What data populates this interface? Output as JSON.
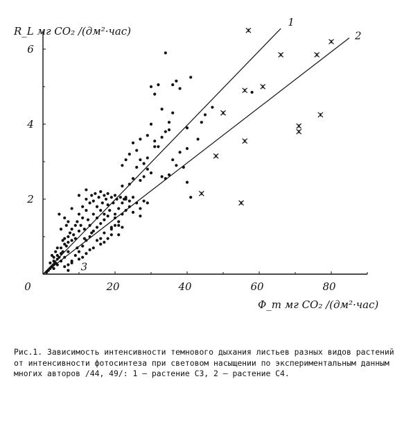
{
  "chart_data": {
    "type": "scatter",
    "ylabel": "R_L  мг CO₂ /(дм²·час)",
    "xlabel": "Φ_m  мг CO₂ /(дм²·час)",
    "xlim": [
      0,
      90
    ],
    "ylim": [
      0,
      6.2
    ],
    "x_ticks": [
      "0",
      "20",
      "40",
      "60",
      "80"
    ],
    "x_tick_values": [
      0,
      20,
      40,
      60,
      80
    ],
    "y_ticks": [
      "2",
      "4",
      "6"
    ],
    "y_tick_values": [
      2,
      4,
      6
    ],
    "grid": false,
    "series": [
      {
        "marker": "dot",
        "points": [
          [
            1,
            0.05
          ],
          [
            1.5,
            0.1
          ],
          [
            2,
            0.15
          ],
          [
            2.5,
            0.2
          ],
          [
            3,
            0.25
          ],
          [
            3,
            0.35
          ],
          [
            3.5,
            0.3
          ],
          [
            4,
            0.4
          ],
          [
            4,
            0.5
          ],
          [
            4.5,
            0.45
          ],
          [
            5,
            0.55
          ],
          [
            5,
            0.7
          ],
          [
            5.5,
            0.6
          ],
          [
            6,
            0.8
          ],
          [
            6,
            0.95
          ],
          [
            6.5,
            0.75
          ],
          [
            7,
            1.0
          ],
          [
            7,
            0.85
          ],
          [
            7.5,
            1.1
          ],
          [
            8,
            0.9
          ],
          [
            8,
            1.2
          ],
          [
            8.5,
            1.05
          ],
          [
            9,
            1.3
          ],
          [
            9,
            0.95
          ],
          [
            9.5,
            1.4
          ],
          [
            10,
            1.15
          ],
          [
            10,
            1.6
          ],
          [
            10.5,
            1.3
          ],
          [
            11,
            1.5
          ],
          [
            11,
            1.8
          ],
          [
            11.5,
            1.2
          ],
          [
            12,
            1.7
          ],
          [
            12,
            2.0
          ],
          [
            12.5,
            1.45
          ],
          [
            13,
            1.9
          ],
          [
            13,
            1.3
          ],
          [
            13.5,
            2.1
          ],
          [
            14,
            1.6
          ],
          [
            14,
            1.95
          ],
          [
            14.5,
            2.15
          ],
          [
            15,
            1.8
          ],
          [
            15,
            1.5
          ],
          [
            15.5,
            2.05
          ],
          [
            16,
            1.7
          ],
          [
            16,
            2.2
          ],
          [
            16.5,
            1.9
          ],
          [
            17,
            2.1
          ],
          [
            17,
            1.6
          ],
          [
            17.5,
            2.0
          ],
          [
            18,
            1.85
          ],
          [
            18,
            2.15
          ],
          [
            18.5,
            1.7
          ],
          [
            19,
            2.05
          ],
          [
            19.5,
            1.9
          ],
          [
            20,
            2.1
          ],
          [
            20,
            1.6
          ],
          [
            20.5,
            2.0
          ],
          [
            21,
            1.75
          ],
          [
            21.5,
            2.05
          ],
          [
            22,
            1.9
          ],
          [
            22.5,
            2.0
          ],
          [
            23,
            2.05
          ],
          [
            8,
            0.35
          ],
          [
            9,
            0.5
          ],
          [
            10,
            0.6
          ],
          [
            11,
            0.75
          ],
          [
            12,
            0.9
          ],
          [
            13,
            1.0
          ],
          [
            14,
            1.15
          ],
          [
            15,
            1.25
          ],
          [
            16,
            1.35
          ],
          [
            17,
            1.45
          ],
          [
            18,
            1.55
          ],
          [
            19,
            1.25
          ],
          [
            20,
            1.5
          ],
          [
            21,
            1.4
          ],
          [
            22,
            1.6
          ],
          [
            23,
            1.7
          ],
          [
            24,
            1.8
          ],
          [
            25,
            1.65
          ],
          [
            26,
            1.9
          ],
          [
            27,
            1.75
          ],
          [
            28,
            1.95
          ],
          [
            7,
            0.6
          ],
          [
            6,
            0.45
          ],
          [
            5,
            0.35
          ],
          [
            4,
            0.25
          ],
          [
            3,
            0.15
          ],
          [
            9.5,
            0.7
          ],
          [
            11.5,
            0.95
          ],
          [
            13.5,
            1.1
          ],
          [
            5.5,
            0.9
          ],
          [
            6.5,
            1.3
          ],
          [
            4.5,
            1.6
          ],
          [
            6,
            1.5
          ],
          [
            8,
            1.75
          ],
          [
            10,
            2.1
          ],
          [
            12,
            2.25
          ],
          [
            7,
            1.4
          ],
          [
            3.5,
            0.6
          ],
          [
            2,
            0.3
          ],
          [
            16,
            0.95
          ],
          [
            15,
            0.9
          ],
          [
            17,
            1.1
          ],
          [
            19,
            1.2
          ],
          [
            20,
            1.3
          ],
          [
            21,
            1.3
          ],
          [
            22,
            2.35
          ],
          [
            24,
            2.4
          ],
          [
            25,
            2.55
          ],
          [
            22,
            2.9
          ],
          [
            23,
            3.05
          ],
          [
            24,
            3.2
          ],
          [
            26,
            2.85
          ],
          [
            27,
            3.05
          ],
          [
            28,
            2.95
          ],
          [
            29,
            3.1
          ],
          [
            30,
            2.7
          ],
          [
            28,
            2.6
          ],
          [
            26,
            3.3
          ],
          [
            25,
            3.5
          ],
          [
            27,
            3.6
          ],
          [
            29,
            3.7
          ],
          [
            31,
            3.55
          ],
          [
            32,
            3.4
          ],
          [
            33,
            3.65
          ],
          [
            35,
            3.85
          ],
          [
            34,
            3.8
          ],
          [
            33,
            4.4
          ],
          [
            30,
            4.0
          ],
          [
            31,
            4.8
          ],
          [
            30,
            5.0
          ],
          [
            32,
            5.05
          ],
          [
            36,
            5.05
          ],
          [
            37,
            5.15
          ],
          [
            38,
            4.95
          ],
          [
            41,
            5.25
          ],
          [
            34,
            5.9
          ],
          [
            35,
            4.05
          ],
          [
            36,
            4.3
          ],
          [
            37,
            2.9
          ],
          [
            38,
            3.25
          ],
          [
            36,
            3.05
          ],
          [
            34,
            2.55
          ],
          [
            33,
            2.6
          ],
          [
            31,
            3.4
          ],
          [
            29,
            2.8
          ],
          [
            27,
            2.5
          ],
          [
            35,
            2.65
          ],
          [
            40,
            3.35
          ],
          [
            39,
            2.85
          ],
          [
            40,
            2.45
          ],
          [
            41,
            2.05
          ],
          [
            40,
            3.9
          ],
          [
            43,
            3.6
          ],
          [
            44,
            4.05
          ],
          [
            45,
            4.25
          ],
          [
            47,
            4.45
          ],
          [
            58,
            4.85
          ],
          [
            29,
            1.9
          ],
          [
            27,
            1.55
          ],
          [
            25,
            2.05
          ],
          [
            24,
            1.95
          ],
          [
            23,
            2.0
          ],
          [
            22,
            1.25
          ],
          [
            21,
            1.05
          ],
          [
            19,
            1.05
          ],
          [
            18,
            0.95
          ],
          [
            17,
            0.85
          ],
          [
            16,
            0.8
          ],
          [
            14,
            0.7
          ],
          [
            13,
            0.65
          ],
          [
            12,
            0.55
          ],
          [
            11,
            0.45
          ],
          [
            10,
            0.4
          ],
          [
            8,
            0.3
          ],
          [
            7,
            0.25
          ],
          [
            6,
            0.2
          ],
          [
            3,
            0.45
          ],
          [
            4,
            0.7
          ],
          [
            2.5,
            0.5
          ],
          [
            5,
            1.2
          ],
          [
            7,
            0.1
          ]
        ]
      },
      {
        "marker": "x",
        "points": [
          [
            57,
            6.5
          ],
          [
            66,
            5.85
          ],
          [
            76,
            5.85
          ],
          [
            80,
            6.2
          ],
          [
            56,
            4.9
          ],
          [
            61,
            5.0
          ],
          [
            50,
            4.3
          ],
          [
            77,
            4.25
          ],
          [
            71,
            3.95
          ],
          [
            71,
            3.8
          ],
          [
            56,
            3.55
          ],
          [
            48,
            3.15
          ],
          [
            44,
            2.15
          ],
          [
            55,
            1.9
          ]
        ]
      }
    ],
    "lines": [
      {
        "label": "1",
        "x": [
          0,
          66
        ],
        "y": [
          0,
          6.55
        ]
      },
      {
        "label": "2",
        "x": [
          0,
          85
        ],
        "y": [
          0,
          6.3
        ]
      }
    ],
    "annotations": [
      "3"
    ]
  },
  "caption": "Рис.1.  Зависимость интенсивности темнового дыхания листьев разных видов растений от интенсивности фотосинтеза при световом насыщении по экспериментальным данным многих авторов /44, 49/: 1 – растение С3, 2 – растение С4."
}
